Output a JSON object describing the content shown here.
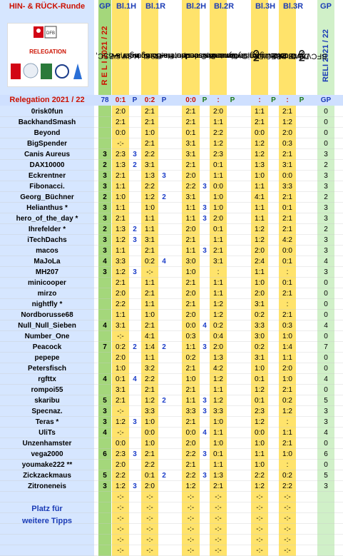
{
  "header": {
    "title": "HIN- & RÜCK-Runde",
    "cols": [
      "GP",
      "Bl.1H",
      "Bl.1R",
      "Bl.2H",
      "Bl.2R",
      "Bl.3H",
      "Bl.3R",
      "GP"
    ],
    "reli_left": "R E L I   2021 / 22",
    "reli_right": "RELI  2021 / 22",
    "matches": [
      {
        "team": "Hertha BSC,",
        "n": "1"
      },
      {
        "team": "Hamburger SV,",
        "n": "2"
      },
      {
        "team": "Hamburger SV,",
        "n": "2"
      },
      {
        "team": "Hertha BSC,",
        "n": "1"
      },
      {
        "team": "Kaiserslautern,",
        "n": "3"
      },
      {
        "team": "Dynamo Dresden,",
        "n": "2"
      },
      {
        "team": "Dynamo Dresden,",
        "n": "2"
      },
      {
        "team": "Kaiserslautern,",
        "n": "3"
      },
      {
        "team": "BFC Dynamo,",
        "n": "NO"
      },
      {
        "team": "VfB Oldenburg,",
        "n": "N"
      },
      {
        "team": "VfB Oldenburg,",
        "n": "N"
      },
      {
        "team": "BFC Dynamo,",
        "n": "NO"
      }
    ],
    "logo": {
      "caption": "RELEGATION",
      "league": "BUNDESLIGA"
    }
  },
  "result_row": {
    "label": "Relegation 2021 / 22",
    "gp": "78",
    "b1h": "0:1",
    "b1hp": "P",
    "b1r": "0:2",
    "b1rp": "P",
    "b2h": "0:0",
    "b2hp": "P",
    "b2r": ":",
    "b2rp": "P",
    "b3h": ":",
    "b3hp": "P",
    "b3r": ":",
    "b3rp": "P",
    "gp2": "GP"
  },
  "rows": [
    {
      "name": "0risk0fun",
      "gp": "",
      "a": "2:0",
      "ap": "",
      "b": "2:1",
      "bp": "",
      "c": "2:1",
      "cp": "",
      "d": "2:0",
      "dp": "",
      "e": "1:1",
      "ep": "",
      "f": "2:1",
      "fp": "",
      "t": "0"
    },
    {
      "name": "BackhandSmash",
      "gp": "",
      "a": "2:1",
      "ap": "",
      "b": "2:1",
      "bp": "",
      "c": "2:1",
      "cp": "",
      "d": "1:1",
      "dp": "",
      "e": "2:1",
      "ep": "",
      "f": "1:2",
      "fp": "",
      "t": "0"
    },
    {
      "name": "Beyond",
      "gp": "",
      "a": "0:0",
      "ap": "",
      "b": "1:0",
      "bp": "",
      "c": "0:1",
      "cp": "",
      "d": "2:2",
      "dp": "",
      "e": "0:0",
      "ep": "",
      "f": "2:0",
      "fp": "",
      "t": "0"
    },
    {
      "name": "BigSpender",
      "gp": "",
      "a": "-:-",
      "ap": "",
      "b": "2:1",
      "bp": "",
      "c": "3:1",
      "cp": "",
      "d": "1:2",
      "dp": "",
      "e": "1:2",
      "ep": "",
      "f": "0:3",
      "fp": "",
      "t": "0"
    },
    {
      "name": "Canis Aureus",
      "gp": "3",
      "a": "2:3",
      "ap": "3",
      "b": "2:2",
      "bp": "",
      "c": "3:1",
      "cp": "",
      "d": "2:3",
      "dp": "",
      "e": "1:2",
      "ep": "",
      "f": "2:1",
      "fp": "",
      "t": "3"
    },
    {
      "name": "DAX10000",
      "gp": "2",
      "a": "1:3",
      "ap": "2",
      "b": "3:1",
      "bp": "",
      "c": "2:1",
      "cp": "",
      "d": "0:1",
      "dp": "",
      "e": "1:3",
      "ep": "",
      "f": "3:1",
      "fp": "",
      "t": "2"
    },
    {
      "name": "Eckrentner",
      "gp": "3",
      "a": "2:1",
      "ap": "",
      "b": "1:3",
      "bp": "3",
      "c": "2:0",
      "cp": "",
      "d": "1:1",
      "dp": "",
      "e": "1:0",
      "ep": "",
      "f": "0:0",
      "fp": "",
      "t": "3"
    },
    {
      "name": "Fibonacci.",
      "gp": "3",
      "a": "1:1",
      "ap": "",
      "b": "2:2",
      "bp": "",
      "c": "2:2",
      "cp": "3",
      "d": "0:0",
      "dp": "",
      "e": "1:1",
      "ep": "",
      "f": "3:3",
      "fp": "",
      "t": "3"
    },
    {
      "name": "Georg_Büchner",
      "gp": "2",
      "a": "1:0",
      "ap": "",
      "b": "1:2",
      "bp": "2",
      "c": "3:1",
      "cp": "",
      "d": "1:0",
      "dp": "",
      "e": "4:1",
      "ep": "",
      "f": "2:1",
      "fp": "",
      "t": "2"
    },
    {
      "name": "Helianthus *",
      "gp": "3",
      "a": "1:1",
      "ap": "",
      "b": "1:0",
      "bp": "",
      "c": "1:1",
      "cp": "3",
      "d": "1:0",
      "dp": "",
      "e": "1:1",
      "ep": "",
      "f": "0:1",
      "fp": "",
      "t": "3"
    },
    {
      "name": "hero_of_the_day *",
      "gp": "3",
      "a": "2:1",
      "ap": "",
      "b": "1:1",
      "bp": "",
      "c": "1:1",
      "cp": "3",
      "d": "2:0",
      "dp": "",
      "e": "1:1",
      "ep": "",
      "f": "2:1",
      "fp": "",
      "t": "3"
    },
    {
      "name": "Ihrefelder *",
      "gp": "2",
      "a": "1:3",
      "ap": "2",
      "b": "1:1",
      "bp": "",
      "c": "2:0",
      "cp": "",
      "d": "0:1",
      "dp": "",
      "e": "1:2",
      "ep": "",
      "f": "2:1",
      "fp": "",
      "t": "2"
    },
    {
      "name": "iTechDachs",
      "gp": "3",
      "a": "1:2",
      "ap": "3",
      "b": "3:1",
      "bp": "",
      "c": "2:1",
      "cp": "",
      "d": "1:1",
      "dp": "",
      "e": "1:2",
      "ep": "",
      "f": "4:2",
      "fp": "",
      "t": "3"
    },
    {
      "name": "macos",
      "gp": "3",
      "a": "1:1",
      "ap": "",
      "b": "2:1",
      "bp": "",
      "c": "1:1",
      "cp": "3",
      "d": "2:1",
      "dp": "",
      "e": "2:0",
      "ep": "",
      "f": "0:0",
      "fp": "",
      "t": "3"
    },
    {
      "name": "MaJoLa",
      "gp": "4",
      "a": "3:3",
      "ap": "",
      "b": "0:2",
      "bp": "4",
      "c": "3:0",
      "cp": "",
      "d": "3:1",
      "dp": "",
      "e": "2:4",
      "ep": "",
      "f": "0:1",
      "fp": "",
      "t": "4"
    },
    {
      "name": "MH207",
      "gp": "3",
      "a": "1:2",
      "ap": "3",
      "b": "-:-",
      "bp": "",
      "c": "1:0",
      "cp": "",
      "d": ":",
      "dp": "",
      "e": "1:1",
      "ep": "",
      "f": ":",
      "fp": "",
      "t": "3"
    },
    {
      "name": "minicooper",
      "gp": "",
      "a": "2:1",
      "ap": "",
      "b": "1:1",
      "bp": "",
      "c": "2:1",
      "cp": "",
      "d": "1:1",
      "dp": "",
      "e": "1:0",
      "ep": "",
      "f": "0:1",
      "fp": "",
      "t": "0"
    },
    {
      "name": "mirzo",
      "gp": "",
      "a": "2:0",
      "ap": "",
      "b": "2:1",
      "bp": "",
      "c": "2:0",
      "cp": "",
      "d": "1:1",
      "dp": "",
      "e": "2:0",
      "ep": "",
      "f": "2:1",
      "fp": "",
      "t": "0"
    },
    {
      "name": "nightfly *",
      "gp": "",
      "a": "2:2",
      "ap": "",
      "b": "1:1",
      "bp": "",
      "c": "2:1",
      "cp": "",
      "d": "1:2",
      "dp": "",
      "e": "3:1",
      "ep": "",
      "f": ":",
      "fp": "",
      "t": "0"
    },
    {
      "name": "Nordborusse68",
      "gp": "",
      "a": "1:1",
      "ap": "",
      "b": "1:0",
      "bp": "",
      "c": "2:0",
      "cp": "",
      "d": "1:2",
      "dp": "",
      "e": "0:2",
      "ep": "",
      "f": "2:1",
      "fp": "",
      "t": "0"
    },
    {
      "name": "Null_Null_Sieben",
      "gp": "4",
      "a": "3:1",
      "ap": "",
      "b": "2:1",
      "bp": "",
      "c": "0:0",
      "cp": "4",
      "d": "0:2",
      "dp": "",
      "e": "3:3",
      "ep": "",
      "f": "0:3",
      "fp": "",
      "t": "4"
    },
    {
      "name": "Number_One",
      "gp": "",
      "a": "-:-",
      "ap": "",
      "b": "4:1",
      "bp": "",
      "c": "0:3",
      "cp": "",
      "d": "0:4",
      "dp": "",
      "e": "3:0",
      "ep": "",
      "f": "1:0",
      "fp": "",
      "t": "0"
    },
    {
      "name": "Peacock",
      "gp": "7",
      "a": "0:2",
      "ap": "2",
      "b": "1:4",
      "bp": "2",
      "c": "1:1",
      "cp": "3",
      "d": "2:0",
      "dp": "",
      "e": "0:2",
      "ep": "",
      "f": "1:4",
      "fp": "",
      "t": "7"
    },
    {
      "name": "pepepe",
      "gp": "",
      "a": "2:0",
      "ap": "",
      "b": "1:1",
      "bp": "",
      "c": "0:2",
      "cp": "",
      "d": "1:3",
      "dp": "",
      "e": "3:1",
      "ep": "",
      "f": "1:1",
      "fp": "",
      "t": "0"
    },
    {
      "name": "Petersfisch",
      "gp": "",
      "a": "1:0",
      "ap": "",
      "b": "3:2",
      "bp": "",
      "c": "2:1",
      "cp": "",
      "d": "4:2",
      "dp": "",
      "e": "1:0",
      "ep": "",
      "f": "2:0",
      "fp": "",
      "t": "0"
    },
    {
      "name": "rgfttx",
      "gp": "4",
      "a": "0:1",
      "ap": "4",
      "b": "2:2",
      "bp": "",
      "c": "1:0",
      "cp": "",
      "d": "1:2",
      "dp": "",
      "e": "0:1",
      "ep": "",
      "f": "1:0",
      "fp": "",
      "t": "4"
    },
    {
      "name": "rompoi55",
      "gp": "",
      "a": "3:1",
      "ap": "",
      "b": "2:1",
      "bp": "",
      "c": "2:1",
      "cp": "",
      "d": "1:1",
      "dp": "",
      "e": "1:2",
      "ep": "",
      "f": "2:1",
      "fp": "",
      "t": "0"
    },
    {
      "name": "skaribu",
      "gp": "5",
      "a": "2:1",
      "ap": "",
      "b": "1:2",
      "bp": "2",
      "c": "1:1",
      "cp": "3",
      "d": "1:2",
      "dp": "",
      "e": "0:1",
      "ep": "",
      "f": "0:2",
      "fp": "",
      "t": "5"
    },
    {
      "name": "Specnaz.",
      "gp": "3",
      "a": "-:-",
      "ap": "",
      "b": "3:3",
      "bp": "",
      "c": "3:3",
      "cp": "3",
      "d": "3:3",
      "dp": "",
      "e": "2:3",
      "ep": "",
      "f": "1:2",
      "fp": "",
      "t": "3"
    },
    {
      "name": "Teras *",
      "gp": "3",
      "a": "1:2",
      "ap": "3",
      "b": "1:0",
      "bp": "",
      "c": "2:1",
      "cp": "",
      "d": "1:0",
      "dp": "",
      "e": "1:2",
      "ep": "",
      "f": ":",
      "fp": "",
      "t": "3"
    },
    {
      "name": "UliTs",
      "gp": "4",
      "a": "-:-",
      "ap": "",
      "b": "0:0",
      "bp": "",
      "c": "0:0",
      "cp": "4",
      "d": "1:1",
      "dp": "",
      "e": "0:0",
      "ep": "",
      "f": "1:1",
      "fp": "",
      "t": "4"
    },
    {
      "name": "Unzenhamster",
      "gp": "",
      "a": "0:0",
      "ap": "",
      "b": "1:0",
      "bp": "",
      "c": "2:0",
      "cp": "",
      "d": "1:0",
      "dp": "",
      "e": "1:0",
      "ep": "",
      "f": "2:1",
      "fp": "",
      "t": "0"
    },
    {
      "name": "vega2000",
      "gp": "6",
      "a": "2:3",
      "ap": "3",
      "b": "2:1",
      "bp": "",
      "c": "2:2",
      "cp": "3",
      "d": "0:1",
      "dp": "",
      "e": "1:1",
      "ep": "",
      "f": "1:0",
      "fp": "",
      "t": "6"
    },
    {
      "name": "youmake222 **",
      "gp": "",
      "a": "2:0",
      "ap": "",
      "b": "2:2",
      "bp": "",
      "c": "2:1",
      "cp": "",
      "d": "1:1",
      "dp": "",
      "e": "1:0",
      "ep": "",
      "f": ":",
      "fp": "",
      "t": "0"
    },
    {
      "name": "Zickzackmaus",
      "gp": "5",
      "a": "2:2",
      "ap": "",
      "b": "0:1",
      "bp": "2",
      "c": "2:2",
      "cp": "3",
      "d": "1:3",
      "dp": "",
      "e": "2:2",
      "ep": "",
      "f": "0:2",
      "fp": "",
      "t": "5"
    },
    {
      "name": "Zitroneneis",
      "gp": "3",
      "a": "1:2",
      "ap": "3",
      "b": "2:0",
      "bp": "",
      "c": "1:2",
      "cp": "",
      "d": "2:1",
      "dp": "",
      "e": "1:2",
      "ep": "",
      "f": "2:2",
      "fp": "",
      "t": "3"
    },
    {
      "name": "",
      "gp": "",
      "a": "-:-",
      "ap": "",
      "b": "-:-",
      "bp": "",
      "c": "-:-",
      "cp": "",
      "d": "-:-",
      "dp": "",
      "e": "-:-",
      "ep": "",
      "f": "-:-",
      "fp": "",
      "t": ""
    },
    {
      "name": "",
      "gp": "",
      "a": "-:-",
      "ap": "",
      "b": "-:-",
      "bp": "",
      "c": "-:-",
      "cp": "",
      "d": "-:-",
      "dp": "",
      "e": "-:-",
      "ep": "",
      "f": "-:-",
      "fp": "",
      "t": ""
    },
    {
      "name": "",
      "gp": "",
      "a": "-:-",
      "ap": "",
      "b": "-:-",
      "bp": "",
      "c": "-:-",
      "cp": "",
      "d": "-:-",
      "dp": "",
      "e": "-:-",
      "ep": "",
      "f": "-:-",
      "fp": "",
      "t": ""
    },
    {
      "name": "",
      "gp": "",
      "a": "-:-",
      "ap": "",
      "b": "-:-",
      "bp": "",
      "c": "-:-",
      "cp": "",
      "d": "-:-",
      "dp": "",
      "e": "-:-",
      "ep": "",
      "f": "-:-",
      "fp": "",
      "t": ""
    },
    {
      "name": "",
      "gp": "",
      "a": "-:-",
      "ap": "",
      "b": "-:-",
      "bp": "",
      "c": "-:-",
      "cp": "",
      "d": "-:-",
      "dp": "",
      "e": "-:-",
      "ep": "",
      "f": "-:-",
      "fp": "",
      "t": ""
    },
    {
      "name": "",
      "gp": "",
      "a": "-:-",
      "ap": "",
      "b": "-:-",
      "bp": "",
      "c": "-:-",
      "cp": "",
      "d": "-:-",
      "dp": "",
      "e": "-:-",
      "ep": "",
      "f": "-:-",
      "fp": "",
      "t": ""
    }
  ],
  "footer": {
    "line1": "Platz für",
    "line2": "weitere Tipps"
  },
  "colors": {
    "label_bg": "#d6e6ff",
    "green": "#a4d77b",
    "green_light": "#d0f0c8",
    "yellow": "#ffe36b",
    "orange": "#ffc629",
    "title_red": "#cc1100",
    "blue": "#1b3cb6",
    "pts_blue": "#1a3cc8"
  }
}
